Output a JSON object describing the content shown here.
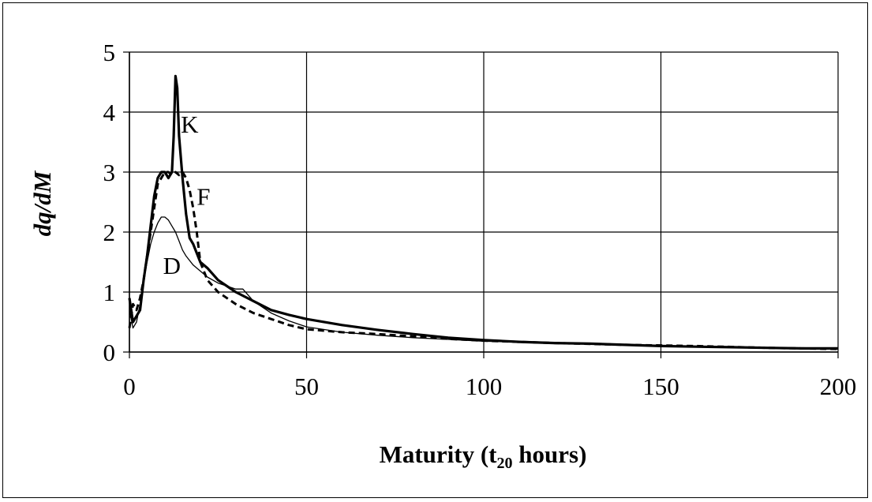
{
  "chart_data": {
    "type": "line",
    "title": "",
    "xlabel": "Maturity (t",
    "xlabel_subscript": "20",
    "xlabel_suffix": " hours)",
    "ylabel": "dq/dM",
    "xlim": [
      0,
      200
    ],
    "ylim": [
      0,
      5
    ],
    "x_ticks": [
      0,
      50,
      100,
      150,
      200
    ],
    "y_ticks": [
      0,
      1,
      2,
      3,
      4,
      5
    ],
    "grid": true,
    "legend": "none",
    "series": [
      {
        "name": "K",
        "style": "thick-solid",
        "x": [
          0,
          1,
          2,
          3,
          4,
          5,
          6,
          7,
          8,
          9,
          10,
          11,
          12,
          12.5,
          13,
          13.5,
          14,
          15,
          16,
          17,
          18,
          20,
          22,
          25,
          30,
          35,
          40,
          45,
          50,
          60,
          70,
          80,
          90,
          100,
          110,
          120,
          130,
          140,
          150,
          160,
          170,
          180,
          190,
          200
        ],
        "y": [
          0.9,
          0.5,
          0.6,
          0.7,
          1.2,
          1.6,
          2.1,
          2.6,
          2.9,
          3.0,
          3.0,
          2.9,
          3.0,
          3.6,
          4.6,
          4.4,
          3.6,
          2.9,
          2.3,
          1.9,
          1.8,
          1.5,
          1.4,
          1.2,
          1.0,
          0.85,
          0.7,
          0.62,
          0.55,
          0.45,
          0.37,
          0.3,
          0.24,
          0.2,
          0.17,
          0.15,
          0.14,
          0.12,
          0.1,
          0.09,
          0.08,
          0.07,
          0.06,
          0.06
        ]
      },
      {
        "name": "F",
        "style": "dashed",
        "x": [
          0,
          1,
          2,
          3,
          4,
          5,
          6,
          7,
          8,
          9,
          10,
          11,
          12,
          13,
          14,
          15,
          16,
          17,
          18,
          19,
          20,
          22,
          25,
          30,
          35,
          40,
          45,
          50,
          60,
          70,
          80,
          90,
          100,
          120,
          140,
          160,
          180,
          200
        ],
        "y": [
          0.4,
          0.8,
          0.7,
          0.9,
          1.2,
          1.6,
          2.0,
          2.4,
          2.8,
          2.9,
          3.0,
          3.0,
          2.95,
          3.0,
          2.95,
          3.0,
          2.9,
          2.7,
          2.4,
          2.0,
          1.5,
          1.2,
          1.0,
          0.8,
          0.65,
          0.55,
          0.45,
          0.38,
          0.33,
          0.3,
          0.26,
          0.22,
          0.19,
          0.15,
          0.12,
          0.1,
          0.07,
          0.05
        ]
      },
      {
        "name": "D",
        "style": "thin-solid",
        "x": [
          0,
          1,
          2,
          3,
          4,
          5,
          6,
          7,
          8,
          9,
          10,
          11,
          12,
          13,
          14,
          15,
          16,
          18,
          20,
          22,
          25,
          30,
          32,
          35,
          40,
          45,
          50,
          60,
          70,
          80,
          90,
          100,
          120,
          140,
          160,
          180,
          200
        ],
        "y": [
          0.7,
          0.4,
          0.5,
          0.8,
          1.2,
          1.5,
          1.8,
          2.0,
          2.15,
          2.25,
          2.25,
          2.2,
          2.1,
          2.0,
          1.85,
          1.7,
          1.6,
          1.45,
          1.35,
          1.25,
          1.15,
          1.05,
          1.05,
          0.85,
          0.65,
          0.52,
          0.42,
          0.33,
          0.28,
          0.24,
          0.21,
          0.18,
          0.15,
          0.12,
          0.09,
          0.07,
          0.05
        ]
      }
    ],
    "series_labels": [
      {
        "name": "K",
        "x": 14.5,
        "y": 3.8
      },
      {
        "name": "F",
        "x": 19,
        "y": 2.6
      },
      {
        "name": "D",
        "x": 9.5,
        "y": 1.45
      }
    ]
  }
}
